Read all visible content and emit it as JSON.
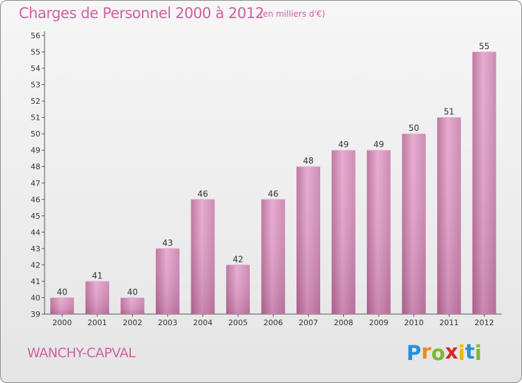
{
  "chart_data": {
    "type": "bar",
    "title": "Charges de Personnel 2000 à 2012",
    "subtitle": "(en milliers d'€)",
    "categories": [
      "2000",
      "2001",
      "2002",
      "2003",
      "2004",
      "2005",
      "2006",
      "2007",
      "2008",
      "2009",
      "2010",
      "2011",
      "2012"
    ],
    "values": [
      40,
      41,
      40,
      43,
      46,
      42,
      46,
      48,
      49,
      49,
      50,
      51,
      55
    ],
    "value_labels": [
      "40",
      "41",
      "40",
      "43",
      "46",
      "42",
      "46",
      "48",
      "49",
      "49",
      "50",
      "51",
      "55"
    ],
    "ylim": [
      39,
      56
    ],
    "yticks": [
      "39",
      "40",
      "41",
      "42",
      "43",
      "44",
      "45",
      "46",
      "47",
      "48",
      "49",
      "50",
      "51",
      "52",
      "53",
      "54",
      "55",
      "56"
    ],
    "grid": false,
    "bar_color": "#d070a8"
  },
  "commune": "WANCHY-CAPVAL",
  "logo": {
    "letters": [
      "P",
      "r",
      "o",
      "x",
      "i",
      "t",
      "i"
    ],
    "colors": [
      "#2a8fd6",
      "#f08a1c",
      "#7ab82f",
      "#d8262c",
      "#f5b400",
      "#2a8fd6",
      "#7ab82f"
    ]
  }
}
